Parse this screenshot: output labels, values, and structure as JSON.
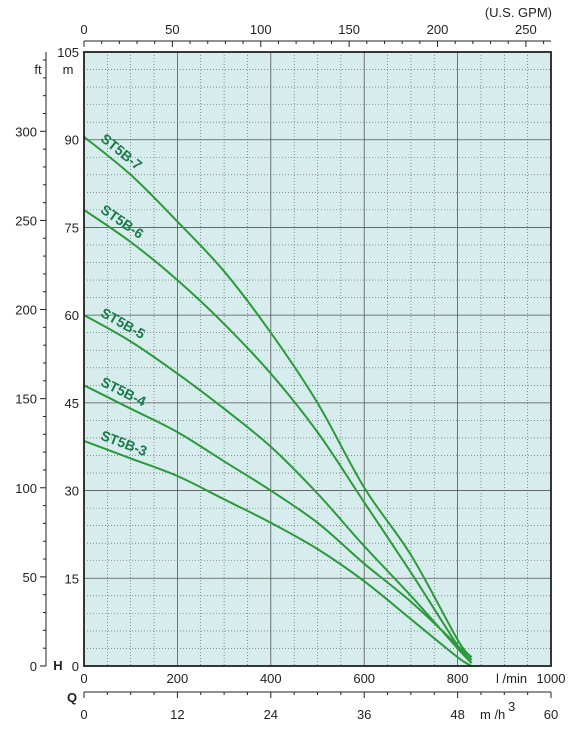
{
  "chart_data": {
    "type": "line",
    "title": "",
    "colors": {
      "plot_bg": "#d7ecec",
      "curve": "#2a9a3a",
      "curve_label": "#1a7a4a",
      "grid": "#555555"
    },
    "grid": true,
    "x_axis_primary": {
      "unit": "l /min",
      "range": [
        0,
        1000
      ],
      "ticks": [
        0,
        200,
        400,
        600,
        800,
        1000
      ],
      "tick_labels": [
        "0",
        "200",
        "400",
        "600",
        "800",
        "1000"
      ]
    },
    "x_axis_m3h": {
      "symbol": "Q",
      "unit": "m /h",
      "unit_superscript": "3",
      "range": [
        0,
        60
      ],
      "ticks": [
        0,
        12,
        24,
        36,
        48,
        60
      ],
      "tick_labels": [
        "0",
        "12",
        "24",
        "36",
        "48",
        "60"
      ]
    },
    "x_axis_gpm": {
      "unit": "(U.S. GPM)",
      "range": [
        0,
        264.2
      ],
      "ticks": [
        0,
        50,
        100,
        150,
        200,
        250
      ],
      "tick_labels": [
        "0",
        "50",
        "100",
        "150",
        "200",
        "250"
      ]
    },
    "y_axis_m": {
      "unit": "m",
      "range": [
        0,
        105
      ],
      "ticks": [
        0,
        15,
        30,
        45,
        60,
        75,
        90,
        105
      ],
      "tick_labels": [
        "0",
        "15",
        "30",
        "45",
        "60",
        "75",
        "90",
        "105"
      ]
    },
    "y_axis_ft": {
      "unit": "ft",
      "symbol": "H",
      "range": [
        0,
        344.5
      ],
      "ticks": [
        0,
        50,
        100,
        150,
        200,
        250,
        300
      ],
      "tick_labels": [
        "0",
        "50",
        "100",
        "150",
        "200",
        "250",
        "300"
      ]
    },
    "series": [
      {
        "name": "ST5B-7",
        "x": [
          0,
          100,
          200,
          300,
          400,
          500,
          600,
          700,
          800,
          830
        ],
        "y": [
          90.5,
          84,
          76,
          67.5,
          57,
          45,
          30.5,
          19,
          4.5,
          1.5
        ]
      },
      {
        "name": "ST5B-6",
        "x": [
          0,
          100,
          200,
          300,
          400,
          500,
          600,
          700,
          800,
          830
        ],
        "y": [
          78,
          72.5,
          66,
          58.5,
          50,
          40,
          28,
          16,
          3.5,
          0.5
        ]
      },
      {
        "name": "ST5B-5",
        "x": [
          0,
          100,
          200,
          300,
          400,
          500,
          600,
          700,
          800,
          830
        ],
        "y": [
          60,
          55.5,
          50,
          44,
          37.5,
          29.5,
          20.5,
          12,
          3,
          0.5
        ]
      },
      {
        "name": "ST5B-4",
        "x": [
          0,
          100,
          200,
          300,
          400,
          500,
          600,
          700,
          800,
          830
        ],
        "y": [
          48,
          44,
          40,
          35,
          30,
          24.5,
          17.5,
          11,
          3.5,
          1
        ]
      },
      {
        "name": "ST5B-3",
        "x": [
          0,
          100,
          200,
          300,
          400,
          500,
          600,
          700,
          800,
          830
        ],
        "y": [
          38.5,
          35.5,
          32.5,
          28.5,
          24.5,
          20,
          14.5,
          8,
          1.5,
          0
        ]
      }
    ]
  }
}
